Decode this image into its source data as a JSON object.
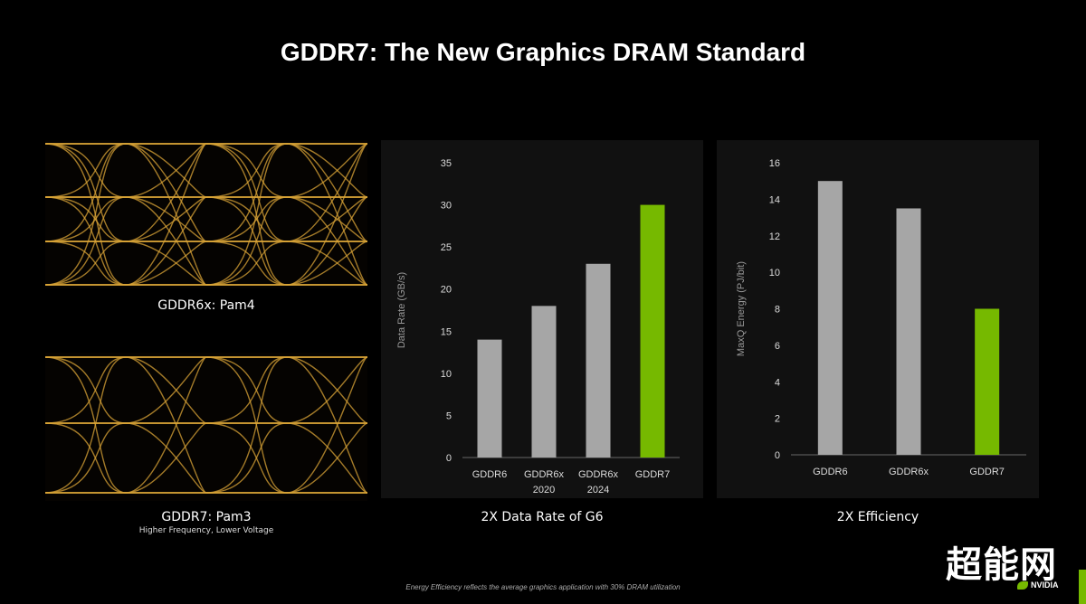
{
  "title": "GDDR7: The New Graphics DRAM Standard",
  "eye_top_label": "GDDR6x: Pam4",
  "eye_bottom_label": "GDDR7: Pam3",
  "eye_bottom_sub": "Higher Frequency, Lower Voltage",
  "caption_left": "2X Data Rate of G6",
  "caption_right": "2X Efficiency",
  "footnote": "Energy Efficiency reflects the average graphics application with 30% DRAM utilization",
  "watermark": "超能网",
  "logo_text": "NVIDIA",
  "colors": {
    "gray": "#a6a6a6",
    "green": "#76b900",
    "gold": "#d9a437"
  },
  "chart_data": [
    {
      "type": "bar",
      "categories": [
        [
          "GDDR6"
        ],
        [
          "GDDR6x",
          "2020"
        ],
        [
          "GDDR6x",
          "2024"
        ],
        [
          "GDDR7"
        ]
      ],
      "values": [
        14,
        18,
        23,
        30
      ],
      "ylabel": "Data Rate (GB/s)",
      "ylim": [
        0,
        35
      ],
      "yticks": [
        0,
        5,
        10,
        15,
        20,
        25,
        30,
        35
      ],
      "highlight_index": 3
    },
    {
      "type": "bar",
      "categories": [
        [
          "GDDR6"
        ],
        [
          "GDDR6x"
        ],
        [
          "GDDR7"
        ]
      ],
      "values": [
        15,
        13.5,
        8
      ],
      "ylabel": "MaxQ Energy (PJ/bit)",
      "ylim": [
        0,
        16
      ],
      "yticks": [
        0,
        2,
        4,
        6,
        8,
        10,
        12,
        14,
        16
      ],
      "highlight_index": 2
    }
  ]
}
